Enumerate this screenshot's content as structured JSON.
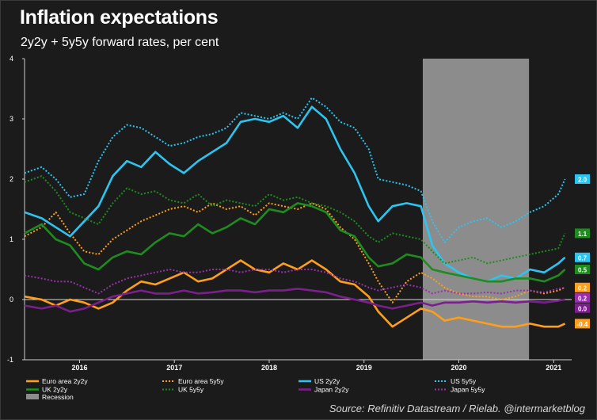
{
  "title": "Inflation expectations",
  "subtitle": "2y2y + 5y5y forward rates, per cent",
  "source": "Source: Refinitiv Datastream / Rielab. @intermarketblog",
  "chart_data": {
    "type": "line",
    "xlim": [
      2015.42,
      2021.19
    ],
    "ylim": [
      -1,
      4
    ],
    "yticks": [
      "-1",
      "0",
      "1",
      "2",
      "3",
      "4"
    ],
    "xticks": [
      {
        "label": "2016",
        "x": 2016.0
      },
      {
        "label": "2017",
        "x": 2017.0
      },
      {
        "label": "2018",
        "x": 2018.0
      },
      {
        "label": "2019",
        "x": 2019.0
      },
      {
        "label": "2020",
        "x": 2020.0
      },
      {
        "label": "2021",
        "x": 2021.0
      }
    ],
    "recession": {
      "label": "Recession",
      "start": 2019.62,
      "end": 2020.74,
      "color": "#8c8c8c"
    },
    "zero_line": true,
    "series": [
      {
        "name": "Euro area 2y2y",
        "color": "#ff9e1b",
        "dash": false,
        "end_label": "-0.4",
        "x": [
          2015.42,
          2015.6,
          2015.75,
          2015.9,
          2016.05,
          2016.2,
          2016.35,
          2016.5,
          2016.65,
          2016.8,
          2016.95,
          2017.1,
          2017.25,
          2017.4,
          2017.55,
          2017.7,
          2017.85,
          2018.0,
          2018.15,
          2018.3,
          2018.45,
          2018.6,
          2018.75,
          2018.9,
          2019.05,
          2019.15,
          2019.3,
          2019.45,
          2019.6,
          2019.72,
          2019.85,
          2020.0,
          2020.15,
          2020.3,
          2020.45,
          2020.6,
          2020.75,
          2020.9,
          2021.05,
          2021.12
        ],
        "y": [
          0.05,
          0.0,
          -0.1,
          0.0,
          -0.05,
          -0.15,
          -0.05,
          0.15,
          0.3,
          0.25,
          0.35,
          0.45,
          0.3,
          0.35,
          0.5,
          0.65,
          0.5,
          0.45,
          0.6,
          0.5,
          0.65,
          0.5,
          0.3,
          0.25,
          0.05,
          -0.2,
          -0.45,
          -0.3,
          -0.15,
          -0.2,
          -0.35,
          -0.3,
          -0.35,
          -0.4,
          -0.45,
          -0.45,
          -0.4,
          -0.45,
          -0.45,
          -0.4
        ]
      },
      {
        "name": "Euro area 5y5y",
        "color": "#ff9e1b",
        "dash": true,
        "end_label": "0.2",
        "x": [
          2015.42,
          2015.6,
          2015.75,
          2015.9,
          2016.05,
          2016.2,
          2016.35,
          2016.5,
          2016.65,
          2016.8,
          2016.95,
          2017.1,
          2017.25,
          2017.4,
          2017.55,
          2017.7,
          2017.85,
          2018.0,
          2018.15,
          2018.3,
          2018.45,
          2018.6,
          2018.75,
          2018.9,
          2019.05,
          2019.15,
          2019.3,
          2019.45,
          2019.6,
          2019.72,
          2019.85,
          2020.0,
          2020.15,
          2020.3,
          2020.45,
          2020.6,
          2020.75,
          2020.9,
          2021.05,
          2021.12
        ],
        "y": [
          1.05,
          1.2,
          1.45,
          1.1,
          0.8,
          0.75,
          1.0,
          1.15,
          1.3,
          1.4,
          1.5,
          1.55,
          1.45,
          1.6,
          1.5,
          1.55,
          1.4,
          1.6,
          1.55,
          1.5,
          1.6,
          1.5,
          1.2,
          1.0,
          0.6,
          0.3,
          -0.05,
          0.3,
          0.45,
          0.35,
          0.2,
          0.1,
          0.05,
          0.05,
          0.0,
          0.05,
          0.15,
          0.1,
          0.15,
          0.2
        ]
      },
      {
        "name": "US 2y2y",
        "color": "#2ec4f0",
        "dash": false,
        "end_label": "0.7",
        "x": [
          2015.42,
          2015.6,
          2015.75,
          2015.9,
          2016.05,
          2016.2,
          2016.35,
          2016.5,
          2016.65,
          2016.8,
          2016.95,
          2017.1,
          2017.25,
          2017.4,
          2017.55,
          2017.7,
          2017.85,
          2018.0,
          2018.15,
          2018.3,
          2018.45,
          2018.6,
          2018.75,
          2018.9,
          2019.05,
          2019.15,
          2019.3,
          2019.45,
          2019.6,
          2019.72,
          2019.85,
          2020.0,
          2020.15,
          2020.3,
          2020.45,
          2020.6,
          2020.75,
          2020.9,
          2021.05,
          2021.12
        ],
        "y": [
          1.45,
          1.35,
          1.2,
          1.05,
          1.3,
          1.55,
          2.05,
          2.3,
          2.2,
          2.45,
          2.25,
          2.1,
          2.3,
          2.45,
          2.6,
          2.95,
          3.0,
          2.95,
          3.05,
          2.85,
          3.2,
          3.0,
          2.5,
          2.1,
          1.55,
          1.3,
          1.55,
          1.6,
          1.55,
          0.9,
          0.6,
          0.45,
          0.35,
          0.3,
          0.4,
          0.35,
          0.5,
          0.45,
          0.6,
          0.7
        ]
      },
      {
        "name": "US 5y5y",
        "color": "#2ec4f0",
        "dash": true,
        "end_label": "2.0",
        "x": [
          2015.42,
          2015.6,
          2015.75,
          2015.9,
          2016.05,
          2016.2,
          2016.35,
          2016.5,
          2016.65,
          2016.8,
          2016.95,
          2017.1,
          2017.25,
          2017.4,
          2017.55,
          2017.7,
          2017.85,
          2018.0,
          2018.15,
          2018.3,
          2018.45,
          2018.6,
          2018.75,
          2018.9,
          2019.05,
          2019.15,
          2019.3,
          2019.45,
          2019.6,
          2019.72,
          2019.85,
          2020.0,
          2020.15,
          2020.3,
          2020.45,
          2020.6,
          2020.75,
          2020.9,
          2021.05,
          2021.12
        ],
        "y": [
          2.1,
          2.2,
          2.0,
          1.7,
          1.75,
          2.3,
          2.7,
          2.9,
          2.85,
          2.7,
          2.55,
          2.6,
          2.7,
          2.75,
          2.85,
          3.1,
          3.05,
          3.0,
          3.1,
          3.0,
          3.35,
          3.2,
          2.95,
          2.85,
          2.5,
          2.0,
          1.95,
          1.9,
          1.8,
          1.3,
          0.95,
          1.2,
          1.3,
          1.35,
          1.2,
          1.3,
          1.45,
          1.55,
          1.75,
          2.0
        ]
      },
      {
        "name": "UK 2y2y",
        "color": "#1e8c1e",
        "dash": false,
        "end_label": "0.5",
        "x": [
          2015.42,
          2015.6,
          2015.75,
          2015.9,
          2016.05,
          2016.2,
          2016.35,
          2016.5,
          2016.65,
          2016.8,
          2016.95,
          2017.1,
          2017.25,
          2017.4,
          2017.55,
          2017.7,
          2017.85,
          2018.0,
          2018.15,
          2018.3,
          2018.45,
          2018.6,
          2018.75,
          2018.9,
          2019.05,
          2019.15,
          2019.3,
          2019.45,
          2019.6,
          2019.72,
          2019.85,
          2020.0,
          2020.15,
          2020.3,
          2020.45,
          2020.6,
          2020.75,
          2020.9,
          2021.05,
          2021.12
        ],
        "y": [
          1.1,
          1.25,
          1.0,
          0.9,
          0.6,
          0.5,
          0.7,
          0.8,
          0.75,
          0.95,
          1.1,
          1.05,
          1.25,
          1.1,
          1.2,
          1.35,
          1.25,
          1.5,
          1.45,
          1.6,
          1.55,
          1.45,
          1.15,
          1.05,
          0.7,
          0.55,
          0.6,
          0.75,
          0.7,
          0.5,
          0.45,
          0.4,
          0.35,
          0.3,
          0.3,
          0.35,
          0.35,
          0.3,
          0.4,
          0.5
        ]
      },
      {
        "name": "UK 5y5y",
        "color": "#1e8c1e",
        "dash": true,
        "end_label": "1.1",
        "x": [
          2015.42,
          2015.6,
          2015.75,
          2015.9,
          2016.05,
          2016.2,
          2016.35,
          2016.5,
          2016.65,
          2016.8,
          2016.95,
          2017.1,
          2017.25,
          2017.4,
          2017.55,
          2017.7,
          2017.85,
          2018.0,
          2018.15,
          2018.3,
          2018.45,
          2018.6,
          2018.75,
          2018.9,
          2019.05,
          2019.15,
          2019.3,
          2019.45,
          2019.6,
          2019.72,
          2019.85,
          2020.0,
          2020.15,
          2020.3,
          2020.45,
          2020.6,
          2020.75,
          2020.9,
          2021.05,
          2021.12
        ],
        "y": [
          1.95,
          2.05,
          1.8,
          1.45,
          1.35,
          1.25,
          1.6,
          1.85,
          1.75,
          1.8,
          1.65,
          1.6,
          1.75,
          1.55,
          1.65,
          1.6,
          1.55,
          1.75,
          1.65,
          1.7,
          1.6,
          1.55,
          1.45,
          1.3,
          1.05,
          0.95,
          1.1,
          1.05,
          1.0,
          0.8,
          0.6,
          0.65,
          0.7,
          0.6,
          0.65,
          0.7,
          0.75,
          0.8,
          0.85,
          1.1
        ]
      },
      {
        "name": "Japan 2y2y",
        "color": "#7a1f8c",
        "dash": false,
        "end_label": "0.0",
        "x": [
          2015.42,
          2015.6,
          2015.75,
          2015.9,
          2016.05,
          2016.2,
          2016.35,
          2016.5,
          2016.65,
          2016.8,
          2016.95,
          2017.1,
          2017.25,
          2017.4,
          2017.55,
          2017.7,
          2017.85,
          2018.0,
          2018.15,
          2018.3,
          2018.45,
          2018.6,
          2018.75,
          2018.9,
          2019.05,
          2019.15,
          2019.3,
          2019.45,
          2019.6,
          2019.72,
          2019.85,
          2020.0,
          2020.15,
          2020.3,
          2020.45,
          2020.6,
          2020.75,
          2020.9,
          2021.05,
          2021.12
        ],
        "y": [
          -0.1,
          -0.15,
          -0.1,
          -0.2,
          -0.15,
          -0.05,
          0.05,
          0.1,
          0.15,
          0.1,
          0.1,
          0.15,
          0.1,
          0.12,
          0.15,
          0.15,
          0.12,
          0.15,
          0.15,
          0.18,
          0.15,
          0.12,
          0.05,
          0.0,
          -0.05,
          -0.1,
          -0.15,
          -0.1,
          -0.05,
          -0.1,
          -0.05,
          -0.05,
          -0.03,
          -0.05,
          -0.03,
          -0.05,
          -0.03,
          -0.05,
          -0.02,
          0.0
        ]
      },
      {
        "name": "Japan 5y5y",
        "color": "#9a30ab",
        "dash": true,
        "end_label": "0.2",
        "x": [
          2015.42,
          2015.6,
          2015.75,
          2015.9,
          2016.05,
          2016.2,
          2016.35,
          2016.5,
          2016.65,
          2016.8,
          2016.95,
          2017.1,
          2017.25,
          2017.4,
          2017.55,
          2017.7,
          2017.85,
          2018.0,
          2018.15,
          2018.3,
          2018.45,
          2018.6,
          2018.75,
          2018.9,
          2019.05,
          2019.15,
          2019.3,
          2019.45,
          2019.6,
          2019.72,
          2019.85,
          2020.0,
          2020.15,
          2020.3,
          2020.45,
          2020.6,
          2020.75,
          2020.9,
          2021.05,
          2021.12
        ],
        "y": [
          0.4,
          0.35,
          0.3,
          0.3,
          0.2,
          0.1,
          0.25,
          0.35,
          0.4,
          0.45,
          0.5,
          0.45,
          0.45,
          0.5,
          0.5,
          0.45,
          0.5,
          0.5,
          0.45,
          0.5,
          0.5,
          0.45,
          0.35,
          0.3,
          0.2,
          0.15,
          0.2,
          0.25,
          0.2,
          0.1,
          0.15,
          0.1,
          0.1,
          0.12,
          0.1,
          0.15,
          0.15,
          0.12,
          0.18,
          0.2
        ]
      }
    ]
  }
}
